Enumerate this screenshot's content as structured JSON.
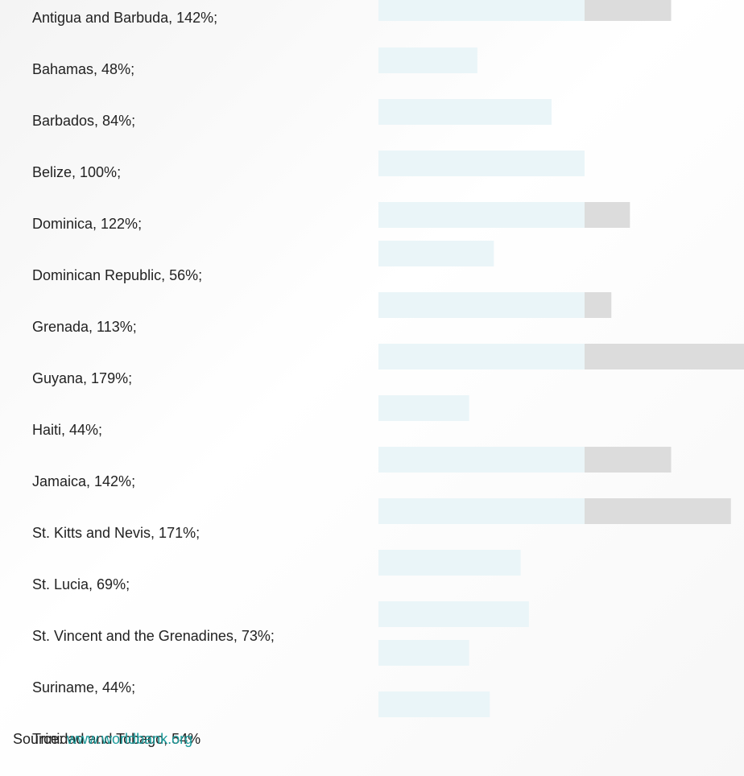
{
  "chart_data": {
    "type": "bar",
    "categories": [
      "Antigua and Barbuda, 142%;",
      "Bahamas, 48%;",
      "Barbados, 84%;",
      "Belize, 100%;",
      "Dominica, 122%;",
      "Dominican Republic, 56%;",
      "Grenada, 113%;",
      "Guyana, 179%;",
      "Haiti, 44%;",
      "Jamaica, 142%;",
      "St. Kitts and Nevis, 171%;",
      "St. Lucia, 69%;",
      "St. Vincent and the Grenadines, 73%;",
      "Suriname, 44%;",
      "Trinidad and Tobago, 54%"
    ],
    "values": [
      142,
      48,
      84,
      100,
      122,
      56,
      113,
      179,
      44,
      142,
      171,
      69,
      73,
      44,
      54
    ],
    "colors": [
      "#eaf5f8",
      "#dcdcdc"
    ],
    "split_at": 100,
    "xlim": [
      0,
      180
    ],
    "source": {
      "label": "Source: ",
      "link": "www.worldbank.org"
    }
  }
}
